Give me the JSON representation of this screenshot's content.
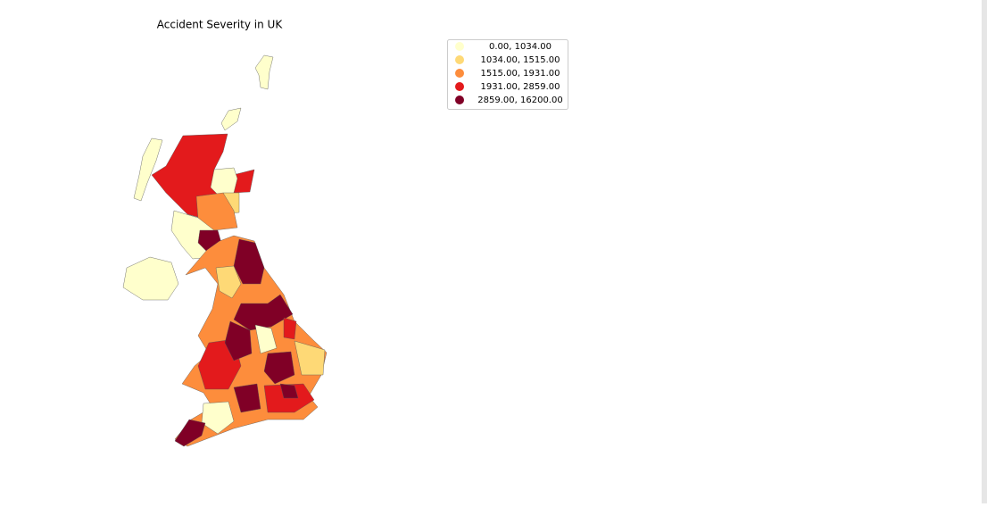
{
  "map": {
    "title": "Accident Severity in UK",
    "legend": [
      {
        "label": "0.00,  1034.00",
        "color": "#ffffcc"
      },
      {
        "label": "1034.00,  1515.00",
        "color": "#fed976"
      },
      {
        "label": "1515.00,  1931.00",
        "color": "#fd8d3c"
      },
      {
        "label": "1931.00,  2859.00",
        "color": "#e31a1c"
      },
      {
        "label": "2859.00, 16200.00",
        "color": "#800026"
      }
    ]
  }
}
